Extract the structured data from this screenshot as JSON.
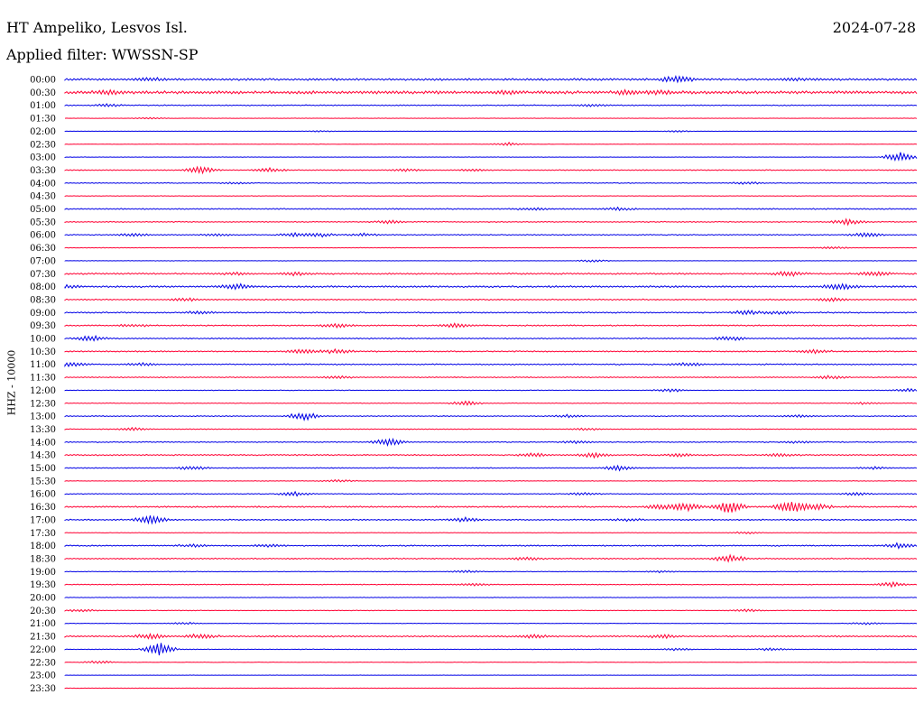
{
  "header": {
    "station": "HT Ampeliko, Lesvos Isl.",
    "date": "2024-07-28",
    "filter": "Applied filter: WWSSN-SP"
  },
  "colors": {
    "even_row": "#0000e6",
    "odd_row": "#ff0033"
  },
  "chart_data": {
    "type": "helicorder",
    "ylabel": "HHZ - 10000",
    "rows": [
      {
        "label": "00:00",
        "noise": 2.5,
        "events": [
          [
            0.72,
            9
          ],
          [
            0.1,
            3
          ],
          [
            0.86,
            3
          ]
        ]
      },
      {
        "label": "00:30",
        "noise": 3.5,
        "events": [
          [
            0.05,
            4
          ],
          [
            0.52,
            4
          ],
          [
            0.66,
            4
          ],
          [
            0.7,
            4
          ]
        ]
      },
      {
        "label": "01:00",
        "noise": 1.2,
        "events": [
          [
            0.05,
            3
          ],
          [
            0.62,
            3
          ]
        ]
      },
      {
        "label": "01:30",
        "noise": 0.5,
        "events": [
          [
            0.1,
            2
          ]
        ]
      },
      {
        "label": "02:00",
        "noise": 0.4,
        "events": [
          [
            0.3,
            2
          ],
          [
            0.72,
            2
          ]
        ]
      },
      {
        "label": "02:30",
        "noise": 0.5,
        "events": [
          [
            0.52,
            4
          ]
        ]
      },
      {
        "label": "03:00",
        "noise": 0.6,
        "events": [
          [
            0.98,
            14
          ]
        ]
      },
      {
        "label": "03:30",
        "noise": 1.2,
        "events": [
          [
            0.16,
            9
          ],
          [
            0.24,
            5
          ],
          [
            0.4,
            3
          ],
          [
            0.48,
            2
          ]
        ]
      },
      {
        "label": "04:00",
        "noise": 1.0,
        "events": [
          [
            0.2,
            2
          ],
          [
            0.8,
            3
          ]
        ]
      },
      {
        "label": "04:30",
        "noise": 0.7,
        "events": []
      },
      {
        "label": "05:00",
        "noise": 1.5,
        "events": [
          [
            0.55,
            3
          ],
          [
            0.65,
            3
          ]
        ]
      },
      {
        "label": "05:30",
        "noise": 1.2,
        "events": [
          [
            0.38,
            4
          ],
          [
            0.92,
            7
          ]
        ]
      },
      {
        "label": "06:00",
        "noise": 1.2,
        "events": [
          [
            0.08,
            4
          ],
          [
            0.18,
            3
          ],
          [
            0.27,
            5
          ],
          [
            0.3,
            4
          ],
          [
            0.35,
            3
          ],
          [
            0.94,
            6
          ]
        ]
      },
      {
        "label": "06:30",
        "noise": 0.7,
        "events": [
          [
            0.9,
            3
          ]
        ]
      },
      {
        "label": "07:00",
        "noise": 0.6,
        "events": [
          [
            0.62,
            3
          ]
        ]
      },
      {
        "label": "07:30",
        "noise": 1.8,
        "events": [
          [
            0.2,
            3
          ],
          [
            0.27,
            4
          ],
          [
            0.85,
            6
          ],
          [
            0.95,
            6
          ]
        ]
      },
      {
        "label": "08:00",
        "noise": 2.2,
        "events": [
          [
            0.2,
            7
          ],
          [
            0.91,
            7
          ],
          [
            0.0,
            4
          ]
        ]
      },
      {
        "label": "08:30",
        "noise": 1.5,
        "events": [
          [
            0.14,
            4
          ],
          [
            0.9,
            4
          ]
        ]
      },
      {
        "label": "09:00",
        "noise": 1.5,
        "events": [
          [
            0.16,
            3
          ],
          [
            0.8,
            5
          ],
          [
            0.84,
            4
          ]
        ]
      },
      {
        "label": "09:30",
        "noise": 1.5,
        "events": [
          [
            0.08,
            3
          ],
          [
            0.32,
            5
          ],
          [
            0.46,
            5
          ]
        ]
      },
      {
        "label": "10:00",
        "noise": 1.5,
        "events": [
          [
            0.03,
            6
          ],
          [
            0.78,
            5
          ]
        ]
      },
      {
        "label": "10:30",
        "noise": 1.5,
        "events": [
          [
            0.28,
            6
          ],
          [
            0.32,
            5
          ],
          [
            0.88,
            5
          ]
        ]
      },
      {
        "label": "11:00",
        "noise": 1.5,
        "events": [
          [
            0.01,
            5
          ],
          [
            0.09,
            3
          ],
          [
            0.73,
            4
          ]
        ]
      },
      {
        "label": "11:30",
        "noise": 1.2,
        "events": [
          [
            0.32,
            3
          ],
          [
            0.9,
            4
          ]
        ]
      },
      {
        "label": "12:00",
        "noise": 0.8,
        "events": [
          [
            0.71,
            4
          ],
          [
            0.99,
            4
          ]
        ]
      },
      {
        "label": "12:30",
        "noise": 0.8,
        "events": [
          [
            0.47,
            6
          ],
          [
            0.94,
            3
          ]
        ]
      },
      {
        "label": "13:00",
        "noise": 1.2,
        "events": [
          [
            0.28,
            10
          ],
          [
            0.59,
            3
          ],
          [
            0.86,
            3
          ]
        ]
      },
      {
        "label": "13:30",
        "noise": 1.0,
        "events": [
          [
            0.08,
            4
          ],
          [
            0.61,
            3
          ]
        ]
      },
      {
        "label": "14:00",
        "noise": 1.2,
        "events": [
          [
            0.38,
            10
          ],
          [
            0.6,
            3
          ],
          [
            0.86,
            3
          ]
        ]
      },
      {
        "label": "14:30",
        "noise": 1.5,
        "events": [
          [
            0.55,
            5
          ],
          [
            0.62,
            6
          ],
          [
            0.72,
            4
          ],
          [
            0.84,
            4
          ]
        ]
      },
      {
        "label": "15:00",
        "noise": 1.2,
        "events": [
          [
            0.15,
            5
          ],
          [
            0.65,
            6
          ],
          [
            0.95,
            3
          ]
        ]
      },
      {
        "label": "15:30",
        "noise": 0.8,
        "events": [
          [
            0.32,
            3
          ]
        ]
      },
      {
        "label": "16:00",
        "noise": 1.0,
        "events": [
          [
            0.27,
            5
          ],
          [
            0.61,
            3
          ],
          [
            0.93,
            4
          ]
        ]
      },
      {
        "label": "16:30",
        "noise": 1.8,
        "events": [
          [
            0.7,
            6
          ],
          [
            0.73,
            9
          ],
          [
            0.78,
            16
          ],
          [
            0.85,
            14
          ],
          [
            0.88,
            9
          ]
        ]
      },
      {
        "label": "17:00",
        "noise": 1.5,
        "events": [
          [
            0.1,
            11
          ],
          [
            0.47,
            5
          ],
          [
            0.66,
            3
          ]
        ]
      },
      {
        "label": "17:30",
        "noise": 0.6,
        "events": [
          [
            0.8,
            3
          ]
        ]
      },
      {
        "label": "18:00",
        "noise": 1.5,
        "events": [
          [
            0.98,
            6
          ],
          [
            0.15,
            3
          ],
          [
            0.24,
            3
          ]
        ]
      },
      {
        "label": "18:30",
        "noise": 1.5,
        "events": [
          [
            0.54,
            4
          ],
          [
            0.78,
            9
          ]
        ]
      },
      {
        "label": "19:00",
        "noise": 0.8,
        "events": [
          [
            0.47,
            3
          ],
          [
            0.7,
            2
          ]
        ]
      },
      {
        "label": "19:30",
        "noise": 1.0,
        "events": [
          [
            0.48,
            3
          ],
          [
            0.97,
            6
          ]
        ]
      },
      {
        "label": "20:00",
        "noise": 0.6,
        "events": []
      },
      {
        "label": "20:30",
        "noise": 0.8,
        "events": [
          [
            0.02,
            3
          ],
          [
            0.8,
            3
          ]
        ]
      },
      {
        "label": "21:00",
        "noise": 0.6,
        "events": [
          [
            0.14,
            3
          ],
          [
            0.94,
            3
          ]
        ]
      },
      {
        "label": "21:30",
        "noise": 1.8,
        "events": [
          [
            0.1,
            6
          ],
          [
            0.16,
            6
          ],
          [
            0.55,
            4
          ],
          [
            0.7,
            4
          ]
        ]
      },
      {
        "label": "22:00",
        "noise": 0.8,
        "events": [
          [
            0.11,
            18
          ],
          [
            0.72,
            3
          ],
          [
            0.83,
            3
          ]
        ]
      },
      {
        "label": "22:30",
        "noise": 0.5,
        "events": [
          [
            0.04,
            4
          ]
        ]
      },
      {
        "label": "23:00",
        "noise": 0.4,
        "events": []
      },
      {
        "label": "23:30",
        "noise": 0.6,
        "events": []
      }
    ]
  }
}
